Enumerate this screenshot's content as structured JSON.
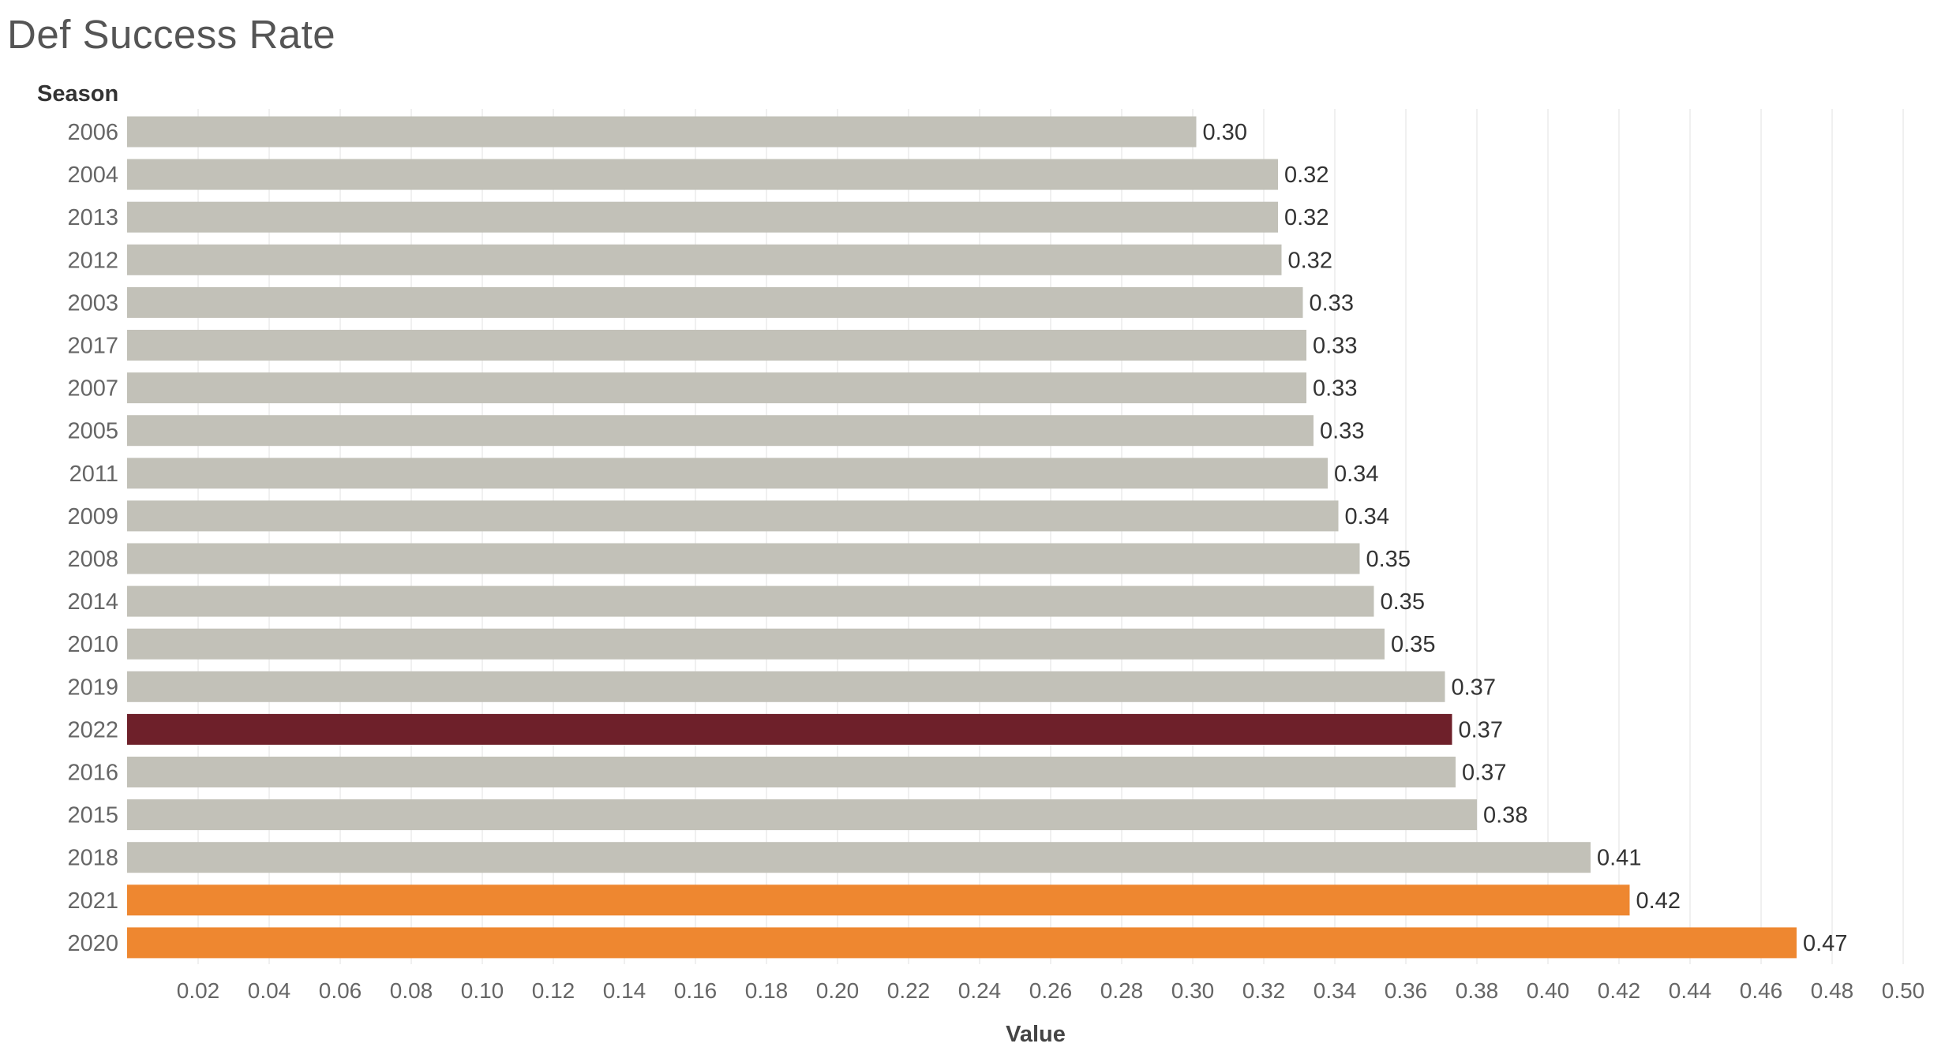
{
  "chart_data": {
    "type": "bar",
    "orientation": "horizontal",
    "title": "Def Success Rate",
    "row_header": "Season",
    "xlabel": "Value",
    "xlim": [
      0,
      0.51
    ],
    "grid": true,
    "x_ticks": [
      "0.02",
      "0.04",
      "0.06",
      "0.08",
      "0.10",
      "0.12",
      "0.14",
      "0.16",
      "0.18",
      "0.20",
      "0.22",
      "0.24",
      "0.26",
      "0.28",
      "0.30",
      "0.32",
      "0.34",
      "0.36",
      "0.38",
      "0.40",
      "0.42",
      "0.44",
      "0.46",
      "0.48",
      "0.50"
    ],
    "categories": [
      "2006",
      "2004",
      "2013",
      "2012",
      "2003",
      "2017",
      "2007",
      "2005",
      "2011",
      "2009",
      "2008",
      "2014",
      "2010",
      "2019",
      "2022",
      "2016",
      "2015",
      "2018",
      "2021",
      "2020"
    ],
    "values": [
      0.301,
      0.324,
      0.324,
      0.325,
      0.331,
      0.332,
      0.332,
      0.334,
      0.338,
      0.341,
      0.347,
      0.351,
      0.354,
      0.371,
      0.373,
      0.374,
      0.38,
      0.412,
      0.423,
      0.47
    ],
    "data_labels": [
      "0.30",
      "0.32",
      "0.32",
      "0.32",
      "0.33",
      "0.33",
      "0.33",
      "0.33",
      "0.34",
      "0.34",
      "0.35",
      "0.35",
      "0.35",
      "0.37",
      "0.37",
      "0.37",
      "0.38",
      "0.41",
      "0.42",
      "0.47"
    ],
    "colors": [
      "#c2c1b8",
      "#c2c1b8",
      "#c2c1b8",
      "#c2c1b8",
      "#c2c1b8",
      "#c2c1b8",
      "#c2c1b8",
      "#c2c1b8",
      "#c2c1b8",
      "#c2c1b8",
      "#c2c1b8",
      "#c2c1b8",
      "#c2c1b8",
      "#c2c1b8",
      "#6e202a",
      "#c2c1b8",
      "#c2c1b8",
      "#c2c1b8",
      "#ee8730",
      "#ee8730"
    ]
  }
}
